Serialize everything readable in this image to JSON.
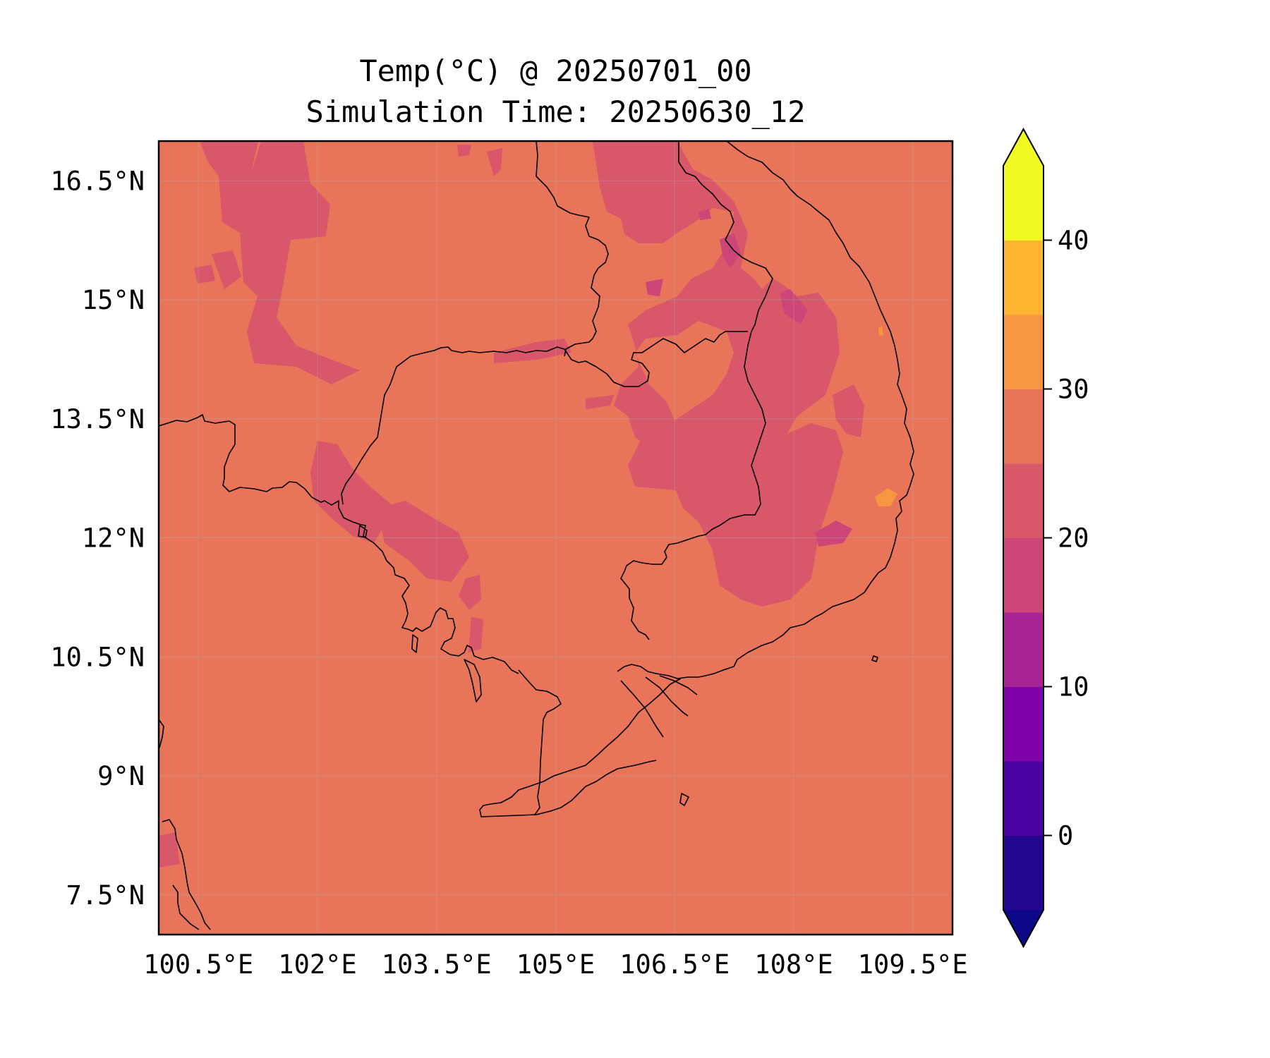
{
  "title": {
    "line1": "Temp(°C) @ 20250701_00",
    "line2": "Simulation Time: 20250630_12"
  },
  "map": {
    "extent": {
      "lon": [
        100.0,
        110.0
      ],
      "lat": [
        7.0,
        17.0
      ]
    },
    "lon_ticks": [
      100.5,
      102.0,
      103.5,
      105.0,
      106.5,
      108.0,
      109.5
    ],
    "lon_tick_labels": [
      "100.5°E",
      "102°E",
      "103.5°E",
      "105°E",
      "106.5°E",
      "108°E",
      "109.5°E"
    ],
    "lat_ticks": [
      7.5,
      9.0,
      10.5,
      12.0,
      13.5,
      15.0,
      16.5
    ],
    "lat_tick_labels": [
      "7.5°N",
      "9°N",
      "10.5°N",
      "12°N",
      "13.5°N",
      "15°N",
      "16.5°N"
    ],
    "background_color": "#e8745a",
    "gridlines": true
  },
  "colorbar": {
    "levels": [
      -5,
      0,
      5,
      10,
      15,
      20,
      25,
      30,
      35,
      40,
      45
    ],
    "colors": [
      "#220690",
      "#4c02a1",
      "#7e03a8",
      "#a92395",
      "#cc4778",
      "#d8576b",
      "#e8745a",
      "#f89540",
      "#fdb42f",
      "#f0f921"
    ],
    "under_color": "#0d0887",
    "over_color": "#f0f921",
    "ticks": [
      0,
      10,
      20,
      30,
      40
    ],
    "tick_labels": [
      "0",
      "10",
      "20",
      "30",
      "40"
    ],
    "extend": "both"
  }
}
